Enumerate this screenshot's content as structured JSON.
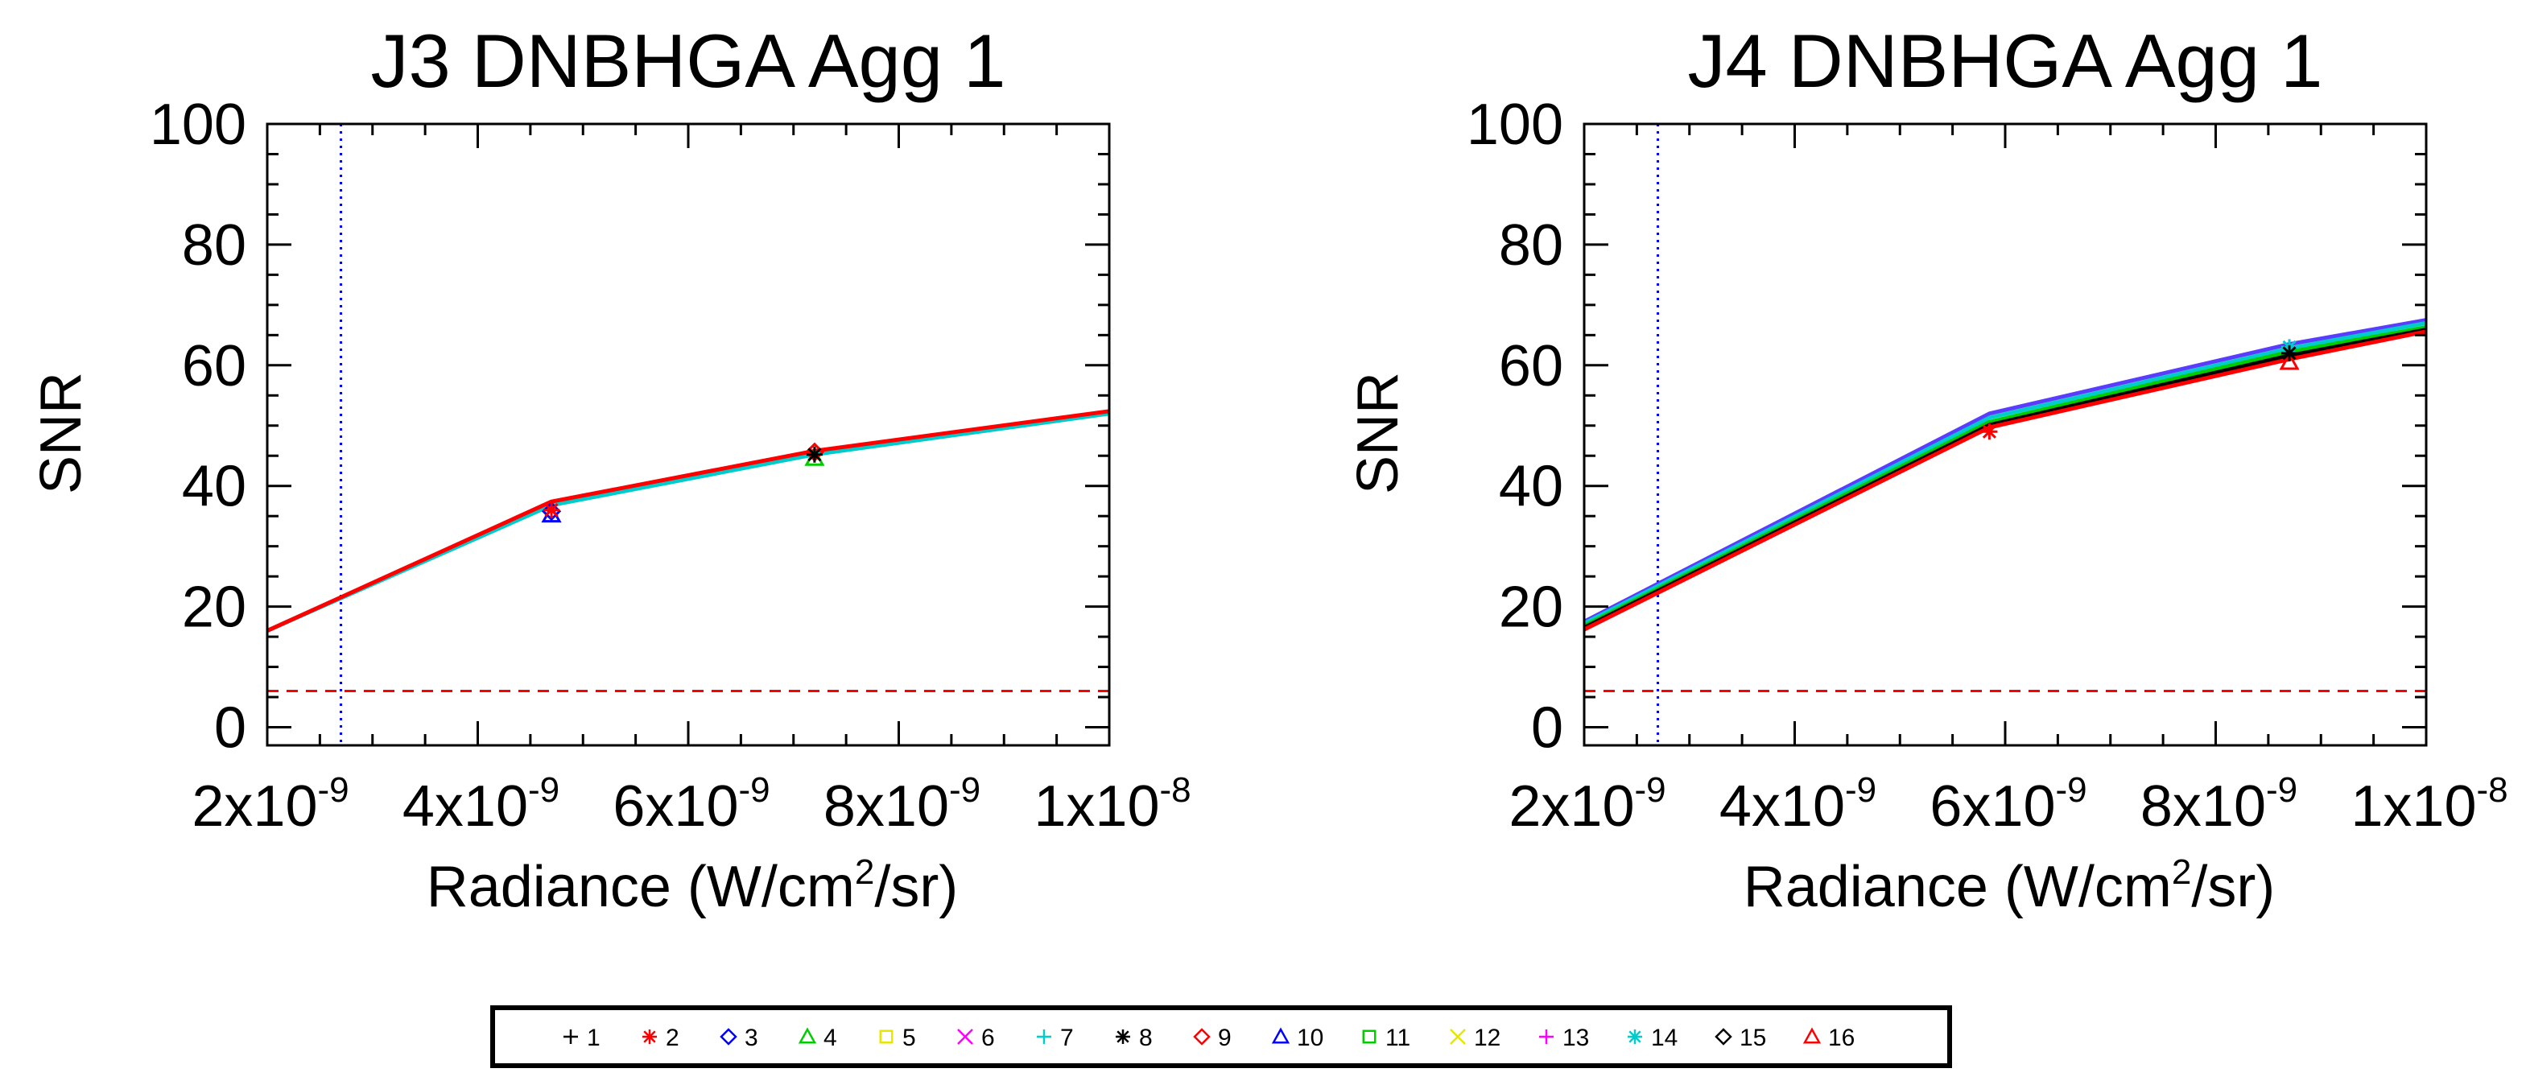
{
  "chart_data": [
    {
      "type": "line",
      "title": "J3 DNBHGA Agg 1",
      "xlabel": "Radiance (W/cm²/sr)",
      "ylabel": "SNR",
      "xlim": [
        2e-09,
        1e-08
      ],
      "ylim": [
        -3,
        100
      ],
      "x_tick_labels": [
        "2x10",
        "4x10",
        "6x10",
        "8x10",
        "1x10"
      ],
      "x_tick_exponents": [
        "-9",
        "-9",
        "-9",
        "-9",
        "-8"
      ],
      "y_tick_labels": [
        "0",
        "20",
        "40",
        "60",
        "80",
        "100"
      ],
      "threshold_snr": 6,
      "vertical_line_radiance": 2.7e-09,
      "series": [
        {
          "name": "1",
          "x": [
            2e-09,
            4.7e-09,
            7.2e-09,
            1e-08
          ],
          "values": [
            16,
            37.2,
            45.6,
            52.2
          ]
        },
        {
          "name": "7",
          "x": [
            2e-09,
            4.7e-09,
            7.2e-09,
            1e-08
          ],
          "values": [
            16,
            36.8,
            45.2,
            52.0
          ]
        },
        {
          "name": "16",
          "x": [
            2e-09,
            4.7e-09,
            7.2e-09,
            1e-08
          ],
          "values": [
            16,
            37.4,
            45.8,
            52.4
          ]
        }
      ],
      "markers": [
        {
          "name": "3",
          "x": 4.7e-09,
          "y": 35.8
        },
        {
          "name": "10",
          "x": 4.7e-09,
          "y": 35.2
        },
        {
          "name": "2",
          "x": 4.7e-09,
          "y": 36.0
        },
        {
          "name": "4",
          "x": 7.2e-09,
          "y": 44.6
        },
        {
          "name": "9",
          "x": 7.2e-09,
          "y": 45.6
        },
        {
          "name": "8",
          "x": 7.2e-09,
          "y": 45.2
        }
      ]
    },
    {
      "type": "line",
      "title": "J4 DNBHGA Agg 1",
      "xlabel": "Radiance (W/cm²/sr)",
      "ylabel": "SNR",
      "xlim": [
        2e-09,
        1e-08
      ],
      "ylim": [
        -3,
        100
      ],
      "x_tick_labels": [
        "2x10",
        "4x10",
        "6x10",
        "8x10",
        "1x10"
      ],
      "x_tick_exponents": [
        "-9",
        "-9",
        "-9",
        "-9",
        "-8"
      ],
      "y_tick_labels": [
        "0",
        "20",
        "40",
        "60",
        "80",
        "100"
      ],
      "threshold_snr": 6,
      "vertical_line_radiance": 2.7e-09,
      "series": [
        {
          "name": "10",
          "x": [
            2e-09,
            5.85e-09,
            8.7e-09,
            1e-08
          ],
          "values": [
            17.5,
            52.0,
            63.5,
            67.5
          ]
        },
        {
          "name": "7",
          "x": [
            2e-09,
            5.85e-09,
            8.7e-09,
            1e-08
          ],
          "values": [
            17.2,
            51.3,
            62.8,
            67.0
          ]
        },
        {
          "name": "11",
          "x": [
            2e-09,
            5.85e-09,
            8.7e-09,
            1e-08
          ],
          "values": [
            16.8,
            50.6,
            62.2,
            66.3
          ]
        },
        {
          "name": "8",
          "x": [
            2e-09,
            5.85e-09,
            8.7e-09,
            1e-08
          ],
          "values": [
            16.5,
            50.1,
            61.6,
            65.9
          ]
        },
        {
          "name": "16",
          "x": [
            2e-09,
            5.85e-09,
            8.7e-09,
            1e-08
          ],
          "values": [
            16.2,
            49.7,
            61.0,
            65.6
          ]
        }
      ],
      "markers": [
        {
          "name": "2",
          "x": 5.85e-09,
          "y": 49.0
        },
        {
          "name": "14",
          "x": 8.7e-09,
          "y": 63.0
        },
        {
          "name": "16",
          "x": 8.7e-09,
          "y": 60.5
        },
        {
          "name": "8",
          "x": 8.7e-09,
          "y": 62.0
        }
      ]
    }
  ],
  "legend": [
    {
      "label": "1",
      "symbol": "plus",
      "color": "#000000"
    },
    {
      "label": "2",
      "symbol": "asterisk",
      "color": "#ff0000"
    },
    {
      "label": "3",
      "symbol": "diamond",
      "color": "#0000ff"
    },
    {
      "label": "4",
      "symbol": "triangle",
      "color": "#00cc00"
    },
    {
      "label": "5",
      "symbol": "square",
      "color": "#e6e600"
    },
    {
      "label": "6",
      "symbol": "x",
      "color": "#ff00ff"
    },
    {
      "label": "7",
      "symbol": "plus",
      "color": "#00cccc"
    },
    {
      "label": "8",
      "symbol": "asterisk",
      "color": "#000000"
    },
    {
      "label": "9",
      "symbol": "diamond",
      "color": "#ff0000"
    },
    {
      "label": "10",
      "symbol": "triangle",
      "color": "#0000ff"
    },
    {
      "label": "11",
      "symbol": "square",
      "color": "#00cc00"
    },
    {
      "label": "12",
      "symbol": "x",
      "color": "#e6e600"
    },
    {
      "label": "13",
      "symbol": "plus",
      "color": "#ff00ff"
    },
    {
      "label": "14",
      "symbol": "asterisk",
      "color": "#00cccc"
    },
    {
      "label": "15",
      "symbol": "diamond",
      "color": "#000000"
    },
    {
      "label": "16",
      "symbol": "triangle",
      "color": "#ff0000"
    }
  ],
  "colors": {
    "threshold_line": "#ff0000",
    "vertical_line": "#0000ff",
    "series_line_colors": {
      "1": "#000000",
      "7": "#00cccc",
      "8": "#000000",
      "10": "#5a3cff",
      "11": "#00cc00",
      "16": "#ff0000"
    }
  }
}
